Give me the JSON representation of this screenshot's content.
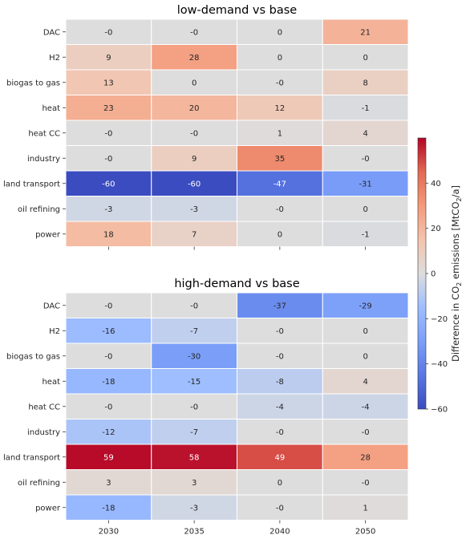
{
  "chart_data": {
    "type": "heatmap",
    "x_categories": [
      "2030",
      "2035",
      "2040",
      "2050"
    ],
    "y_categories": [
      "DAC",
      "H2",
      "biogas to gas",
      "heat",
      "heat CC",
      "industry",
      "land transport",
      "oil refining",
      "power"
    ],
    "panels": [
      {
        "title": "low-demand vs base",
        "labels": [
          [
            "-0",
            "-0",
            "0",
            "21"
          ],
          [
            "9",
            "28",
            "0",
            "0"
          ],
          [
            "13",
            "0",
            "-0",
            "8"
          ],
          [
            "23",
            "20",
            "12",
            "-1"
          ],
          [
            "-0",
            "-0",
            "1",
            "4"
          ],
          [
            "-0",
            "9",
            "35",
            "-0"
          ],
          [
            "-60",
            "-60",
            "-47",
            "-31"
          ],
          [
            "-3",
            "-3",
            "-0",
            "0"
          ],
          [
            "18",
            "7",
            "0",
            "-1"
          ]
        ]
      },
      {
        "title": "high-demand vs base",
        "labels": [
          [
            "-0",
            "-0",
            "-37",
            "-29"
          ],
          [
            "-16",
            "-7",
            "-0",
            "0"
          ],
          [
            "-0",
            "-30",
            "-0",
            "0"
          ],
          [
            "-18",
            "-15",
            "-8",
            "4"
          ],
          [
            "-0",
            "-0",
            "-4",
            "-4"
          ],
          [
            "-12",
            "-7",
            "-0",
            "-0"
          ],
          [
            "59",
            "58",
            "49",
            "28"
          ],
          [
            "3",
            "3",
            "0",
            "-0"
          ],
          [
            "-18",
            "-3",
            "-0",
            "1"
          ]
        ]
      }
    ],
    "colorbar": {
      "label_main": "Difference in CO",
      "label_sub": "2",
      "label_rest": " emissions [MtCO",
      "label_sub2": "2",
      "label_end": "/a]",
      "ticks": [
        "40",
        "20",
        "0",
        "−20",
        "−40",
        "−60"
      ],
      "tick_values": [
        40,
        20,
        0,
        -20,
        -40,
        -60
      ],
      "vmin": -60,
      "vmax": 60,
      "colormap": "coolwarm"
    }
  }
}
